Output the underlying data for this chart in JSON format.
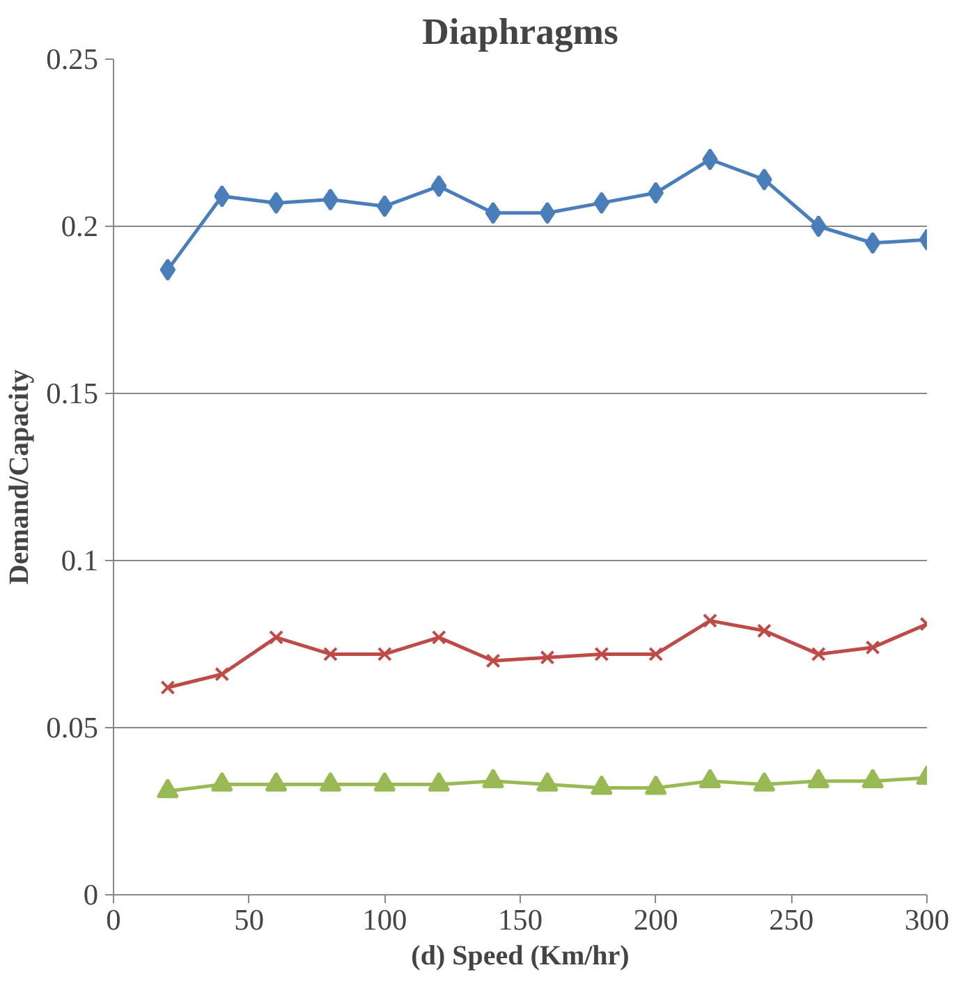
{
  "chart_data": {
    "type": "line",
    "title": "Diaphragms",
    "xlabel": "(d) Speed (Km/hr)",
    "ylabel": "Demand/Capacity",
    "x": [
      20,
      40,
      60,
      80,
      100,
      120,
      140,
      160,
      180,
      200,
      220,
      240,
      260,
      280,
      300
    ],
    "series": [
      {
        "color": "#4a7ebb",
        "marker": "diamond",
        "values": [
          0.187,
          0.209,
          0.207,
          0.208,
          0.206,
          0.212,
          0.204,
          0.204,
          0.207,
          0.21,
          0.22,
          0.214,
          0.2,
          0.195,
          0.196
        ]
      },
      {
        "color": "#be4b48",
        "marker": "cross",
        "values": [
          0.062,
          0.066,
          0.077,
          0.072,
          0.072,
          0.077,
          0.07,
          0.071,
          0.072,
          0.072,
          0.082,
          0.079,
          0.072,
          0.074,
          0.081
        ]
      },
      {
        "color": "#98b954",
        "marker": "triangle",
        "values": [
          0.031,
          0.033,
          0.033,
          0.033,
          0.033,
          0.033,
          0.034,
          0.033,
          0.032,
          0.032,
          0.034,
          0.033,
          0.034,
          0.034,
          0.035
        ]
      }
    ],
    "xlim": [
      0,
      300
    ],
    "xticks": [
      0,
      50,
      100,
      150,
      200,
      250,
      300
    ],
    "ylim": [
      0,
      0.25
    ],
    "yticks": [
      0,
      0.05,
      0.1,
      0.15,
      0.2,
      0.25
    ],
    "grid": "y",
    "line_style": "solid"
  }
}
